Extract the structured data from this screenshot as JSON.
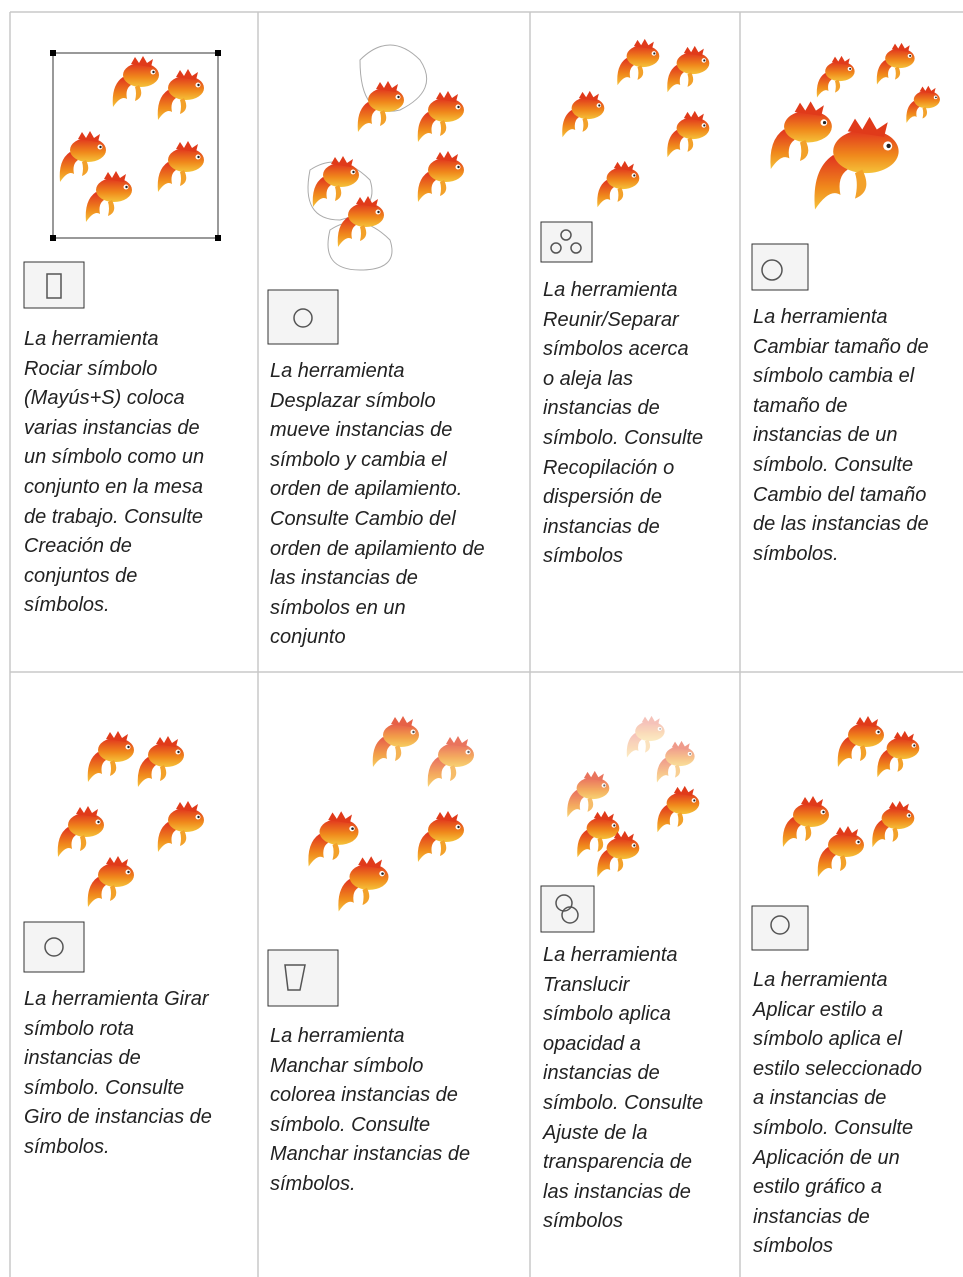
{
  "table": {
    "rows": [
      [
        {
          "lines": [
            "La herramienta",
            "Rociar símbolo",
            "(Mayús+S) coloca",
            "varias instancias de",
            "un símbolo como un",
            "conjunto en la mesa",
            "de trabajo. Consulte",
            "Creación de",
            "conjuntos de",
            "símbolos."
          ]
        },
        {
          "lines": [
            "La herramienta",
            "Desplazar símbolo",
            "mueve instancias de",
            "símbolo y cambia el",
            "orden de apilamiento.",
            "Consulte Cambio del",
            "orden de apilamiento de",
            "las instancias de",
            "símbolos en un",
            "conjunto"
          ]
        },
        {
          "lines": [
            "La herramienta",
            "Reunir/Separar",
            "símbolos acerca",
            "o aleja las",
            "instancias de",
            "símbolo. Consulte",
            "Recopilación o",
            "dispersión de",
            "instancias de",
            "símbolos"
          ]
        },
        {
          "lines": [
            "La herramienta",
            "Cambiar tamaño de",
            "símbolo cambia el",
            "tamaño de",
            "instancias de un",
            "símbolo. Consulte",
            "Cambio del tamaño",
            "de las instancias de",
            "símbolos."
          ]
        }
      ],
      [
        {
          "lines": [
            "La herramienta Girar",
            "símbolo rota",
            "instancias de",
            "símbolo. Consulte",
            "Giro de instancias de",
            "símbolos."
          ]
        },
        {
          "lines": [
            "La herramienta",
            "Manchar símbolo",
            "colorea instancias de",
            "símbolo. Consulte",
            "Manchar instancias de",
            "símbolos."
          ]
        },
        {
          "lines": [
            "La herramienta",
            "Translucir",
            "símbolo aplica",
            "opacidad a",
            "instancias de",
            "símbolo. Consulte",
            "Ajuste de la",
            "transparencia de",
            "las instancias de",
            "símbolos"
          ]
        },
        {
          "lines": [
            "La herramienta",
            "Aplicar estilo a",
            "símbolo aplica el",
            "estilo seleccionado",
            "a instancias de",
            "símbolo. Consulte",
            "Aplicación de un",
            "estilo gráfico a",
            "instancias de",
            "símbolos"
          ]
        }
      ]
    ]
  }
}
